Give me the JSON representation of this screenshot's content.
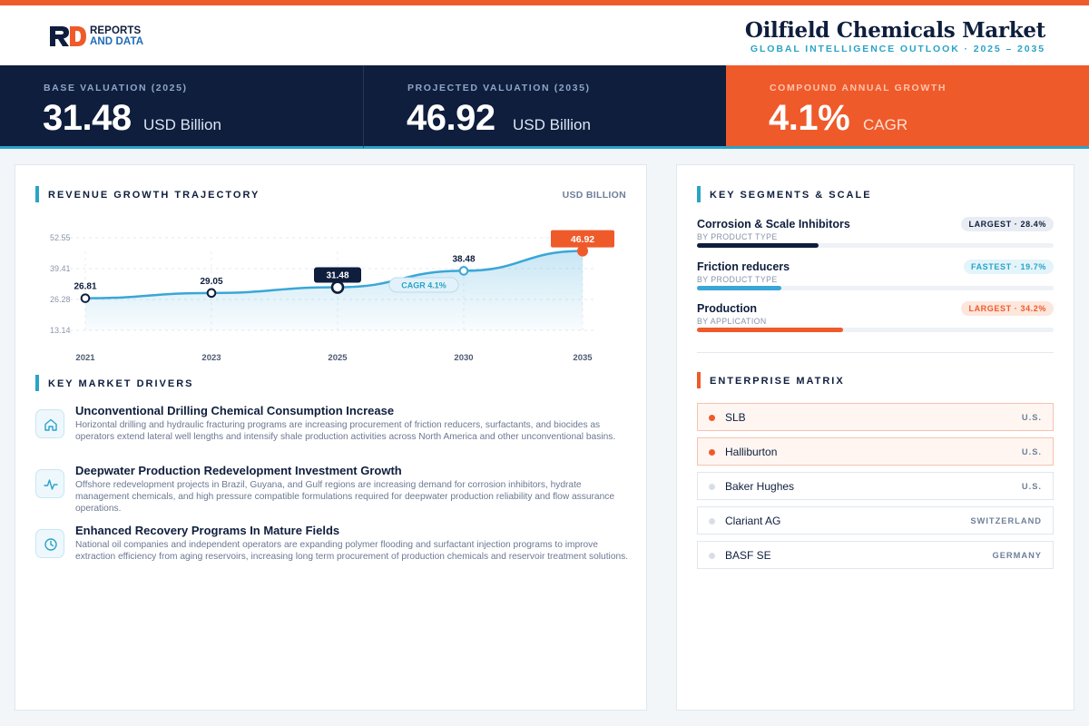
{
  "brand": {
    "line1": "REPORTS",
    "line2": "AND DATA"
  },
  "header": {
    "title": "Oilfield Chemicals Market",
    "subtitle": "GLOBAL INTELLIGENCE OUTLOOK  ·  2025 – 2035"
  },
  "kpis": [
    {
      "label": "BASE VALUATION (2025)",
      "value": "31.48",
      "unit": "USD Billion"
    },
    {
      "label": "PROJECTED VALUATION (2035)",
      "value": "46.92",
      "unit": "USD Billion"
    },
    {
      "label": "COMPOUND ANNUAL GROWTH",
      "value": "4.1%",
      "unit": "CAGR"
    }
  ],
  "revenue": {
    "title": "REVENUE GROWTH TRAJECTORY",
    "unit": "USD BILLION"
  },
  "chart_data": {
    "type": "area",
    "title": "REVENUE GROWTH TRAJECTORY",
    "ylabel": "USD BILLION",
    "categories": [
      "2021",
      "2023",
      "2025",
      "2030",
      "2035"
    ],
    "values": [
      26.81,
      29.05,
      31.48,
      38.48,
      46.92
    ],
    "data_labels": [
      "26.81",
      "29.05",
      "31.48",
      "38.48",
      "46.92"
    ],
    "yticks": [
      "52.55",
      "39.41",
      "26.28",
      "13.14"
    ],
    "ylim": [
      13.14,
      52.55
    ],
    "annotation": "CAGR 4.1%",
    "highlight": {
      "base": "2025",
      "projected": "2035"
    },
    "grid": true,
    "colors": {
      "line": "#3aa6d8",
      "base": "#0f1e3d",
      "projected": "#ef5a2a"
    }
  },
  "drivers": {
    "title": "KEY MARKET DRIVERS",
    "items": [
      {
        "icon": "home-icon",
        "title": "Unconventional Drilling Chemical Consumption Increase",
        "text": "Horizontal drilling and hydraulic fracturing programs are increasing procurement of friction reducers, surfactants, and biocides as operators extend lateral well lengths and intensify shale production activities across North America and other unconventional basins."
      },
      {
        "icon": "activity-icon",
        "title": "Deepwater Production Redevelopment Investment Growth",
        "text": "Offshore redevelopment projects in Brazil, Guyana, and Gulf regions are increasing demand for corrosion inhibitors, hydrate management chemicals, and high pressure compatible formulations required for deepwater production reliability and flow assurance operations."
      },
      {
        "icon": "clock-icon",
        "title": "Enhanced Recovery Programs In Mature Fields",
        "text": "National oil companies and independent operators are expanding polymer flooding and surfactant injection programs to improve extraction efficiency from aging reservoirs, increasing long term procurement of production chemicals and reservoir treatment solutions."
      }
    ]
  },
  "segments": {
    "title": "KEY SEGMENTS & SCALE",
    "items": [
      {
        "name": "Corrosion & Scale Inhibitors",
        "sub": "BY PRODUCT TYPE",
        "badge": "LARGEST · 28.4%",
        "share": 0.284,
        "color": "#0f1e3d"
      },
      {
        "name": "Friction reducers",
        "sub": "BY PRODUCT TYPE",
        "badge": "FASTEST · 19.7%",
        "share": 0.197,
        "color": "#3aa6d8"
      },
      {
        "name": "Production",
        "sub": "BY APPLICATION",
        "badge": "LARGEST · 34.2%",
        "share": 0.342,
        "color": "#ef5a2a"
      }
    ]
  },
  "enterprise": {
    "title": "ENTERPRISE MATRIX",
    "items": [
      {
        "name": "SLB",
        "country": "U.S.",
        "highlight": true
      },
      {
        "name": "Halliburton",
        "country": "U.S.",
        "highlight": true
      },
      {
        "name": "Baker Hughes",
        "country": "U.S.",
        "highlight": false
      },
      {
        "name": "Clariant AG",
        "country": "SWITZERLAND",
        "highlight": false
      },
      {
        "name": "BASF SE",
        "country": "GERMANY",
        "highlight": false
      }
    ]
  }
}
